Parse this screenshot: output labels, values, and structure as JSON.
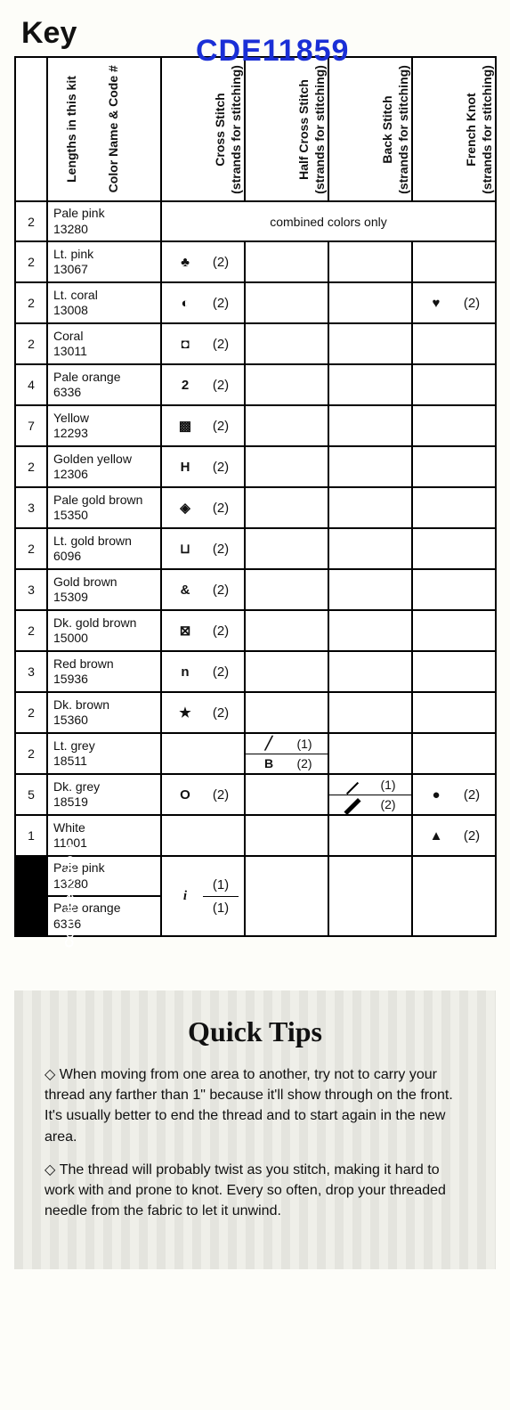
{
  "watermark": "CDE11859",
  "title": "Key",
  "headers": {
    "lengths": "Lengths in this kit",
    "name": "Color Name & Code #",
    "cross": "Cross Stitch",
    "cross_sub": "(strands for stitching)",
    "half": "Half Cross Stitch",
    "half_sub": "(strands for stitching)",
    "back": "Back Stitch",
    "back_sub": "(strands for stitching)",
    "french": "French Knot",
    "french_sub": "(strands for stitching)"
  },
  "combined_note": "combined colors only",
  "combined_label": "Combined Colors",
  "rows": [
    {
      "len": "2",
      "name": "Pale pink",
      "code": "13280",
      "combined": true
    },
    {
      "len": "2",
      "name": "Lt. pink",
      "code": "13067",
      "cross": {
        "sym": "♣",
        "str": "(2)"
      }
    },
    {
      "len": "2",
      "name": "Lt. coral",
      "code": "13008",
      "cross": {
        "sym": "◐",
        "str": "(2)"
      },
      "french": {
        "sym": "♥",
        "str": "(2)"
      }
    },
    {
      "len": "2",
      "name": "Coral",
      "code": "13011",
      "cross": {
        "sym": "◘",
        "str": "(2)"
      }
    },
    {
      "len": "4",
      "name": "Pale orange",
      "code": "6336",
      "cross": {
        "sym": "2",
        "str": "(2)"
      }
    },
    {
      "len": "7",
      "name": "Yellow",
      "code": "12293",
      "cross": {
        "sym": "▩",
        "str": "(2)"
      }
    },
    {
      "len": "2",
      "name": "Golden yellow",
      "code": "12306",
      "cross": {
        "sym": "H",
        "str": "(2)"
      }
    },
    {
      "len": "3",
      "name": "Pale gold brown",
      "code": "15350",
      "cross": {
        "sym": "◈",
        "str": "(2)"
      }
    },
    {
      "len": "2",
      "name": "Lt. gold brown",
      "code": "6096",
      "cross": {
        "sym": "⊔",
        "str": "(2)"
      }
    },
    {
      "len": "3",
      "name": "Gold brown",
      "code": "15309",
      "cross": {
        "sym": "&",
        "str": "(2)"
      }
    },
    {
      "len": "2",
      "name": "Dk. gold brown",
      "code": "15000",
      "cross": {
        "sym": "⊠",
        "str": "(2)"
      }
    },
    {
      "len": "3",
      "name": "Red brown",
      "code": "15936",
      "cross": {
        "sym": "n",
        "str": "(2)"
      }
    },
    {
      "len": "2",
      "name": "Dk. brown",
      "code": "15360",
      "cross": {
        "sym": "★",
        "str": "(2)"
      }
    },
    {
      "len": "2",
      "name": "Lt. grey",
      "code": "18511",
      "half_split": [
        {
          "sym": "╱",
          "str": "(1)"
        },
        {
          "sym": "B",
          "str": "(2)"
        }
      ]
    },
    {
      "len": "5",
      "name": "Dk. grey",
      "code": "18519",
      "cross": {
        "sym": "O",
        "str": "(2)"
      },
      "back_split": [
        {
          "sym": "thin",
          "str": "(1)"
        },
        {
          "sym": "thick",
          "str": "(2)"
        }
      ],
      "french": {
        "sym": "●",
        "str": "(2)"
      }
    },
    {
      "len": "1",
      "name": "White",
      "code": "11001",
      "french": {
        "sym": "▲",
        "str": "(2)"
      }
    }
  ],
  "combined_rows": [
    {
      "name": "Pale pink",
      "code": "13280",
      "cross_sym": "i",
      "str": "(1)"
    },
    {
      "name": "Pale orange",
      "code": "6336",
      "str": "(1)"
    }
  ],
  "tips": {
    "title": "Quick Tips",
    "items": [
      "When moving from one area to another, try not to carry your thread any farther than 1\" because it'll show through on the front. It's usually better to end the thread and to start again in the new area.",
      "The thread will probably twist as you stitch, making it hard to work with and prone to knot. Every so often, drop your threaded needle from the fabric to let it unwind."
    ]
  }
}
